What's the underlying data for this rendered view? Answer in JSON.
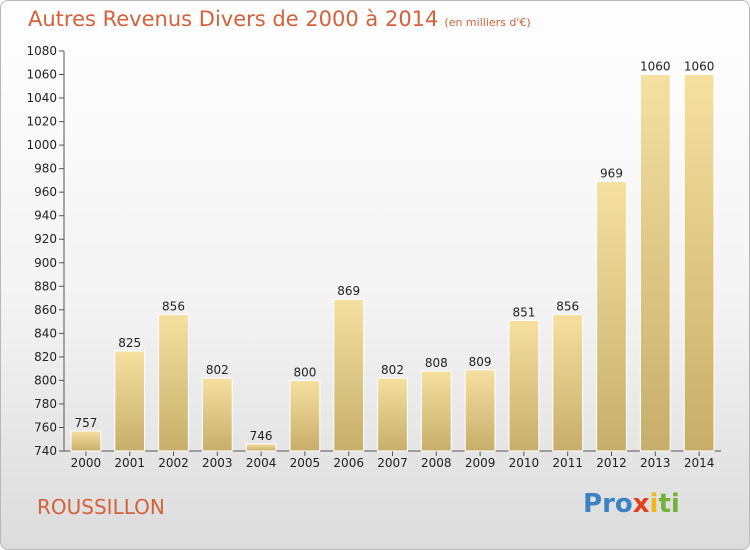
{
  "chart_data": {
    "type": "bar",
    "title": "Autres Revenus Divers de 2000 à 2014",
    "subtitle": "(en milliers d'€)",
    "categories": [
      "2000",
      "2001",
      "2002",
      "2003",
      "2004",
      "2005",
      "2006",
      "2007",
      "2008",
      "2009",
      "2010",
      "2011",
      "2012",
      "2013",
      "2014"
    ],
    "values": [
      757,
      825,
      856,
      802,
      746,
      800,
      869,
      802,
      808,
      809,
      851,
      856,
      969,
      1060,
      1060
    ],
    "ylim": [
      740,
      1080
    ],
    "yticks": [
      740,
      760,
      780,
      800,
      820,
      840,
      860,
      880,
      900,
      920,
      940,
      960,
      980,
      1000,
      1020,
      1040,
      1060,
      1080
    ],
    "grid": false,
    "bar_color_top": "#f6e0a0",
    "bar_color_bottom": "#c7ae6a"
  },
  "footer": {
    "city": "ROUSSILLON",
    "logo_letters": [
      {
        "ch": "P",
        "color": "#3a82c4"
      },
      {
        "ch": "r",
        "color": "#3a82c4"
      },
      {
        "ch": "o",
        "color": "#3a82c4"
      },
      {
        "ch": "x",
        "color": "#e2401f"
      },
      {
        "ch": "i",
        "color": "#f0b61e"
      },
      {
        "ch": "t",
        "color": "#74b13a"
      },
      {
        "ch": "i",
        "color": "#74b13a"
      }
    ]
  }
}
